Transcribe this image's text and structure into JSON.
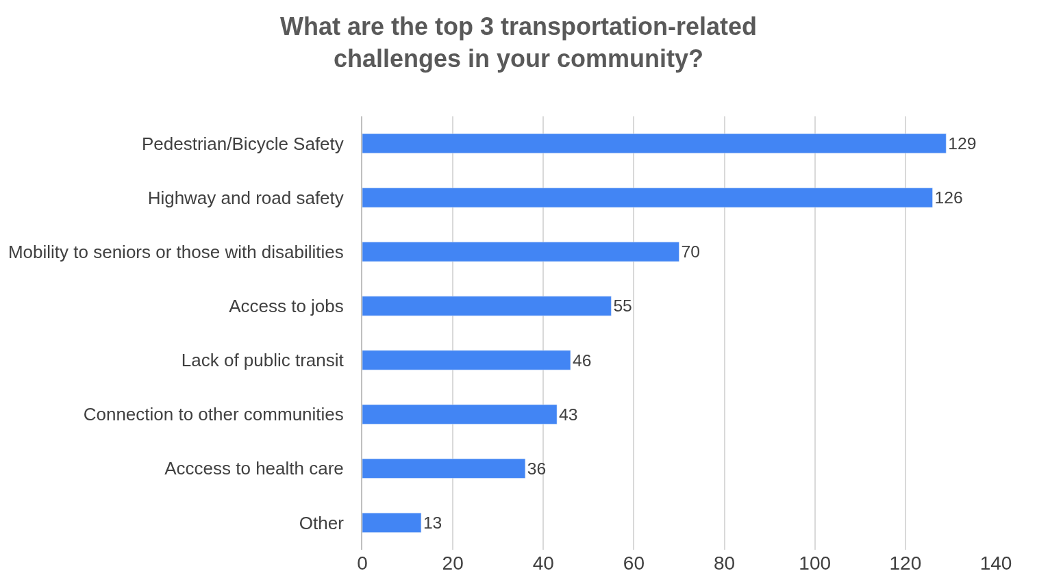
{
  "chart_data": {
    "type": "bar",
    "orientation": "horizontal",
    "title": "What are the top 3 transportation-related\nchallenges in your community?",
    "categories": [
      "Pedestrian/Bicycle Safety",
      "Highway and road safety",
      "Mobility to seniors or those with disabilities",
      "Access to jobs",
      "Lack of public transit",
      "Connection to other communities",
      "Acccess to health care",
      "Other"
    ],
    "values": [
      129,
      126,
      70,
      55,
      46,
      43,
      36,
      13
    ],
    "color": "#4285f4",
    "xlim": [
      0,
      140
    ],
    "xticks": [
      0,
      20,
      40,
      60,
      80,
      100,
      120,
      140
    ],
    "grid": "x",
    "data_labels": true
  }
}
